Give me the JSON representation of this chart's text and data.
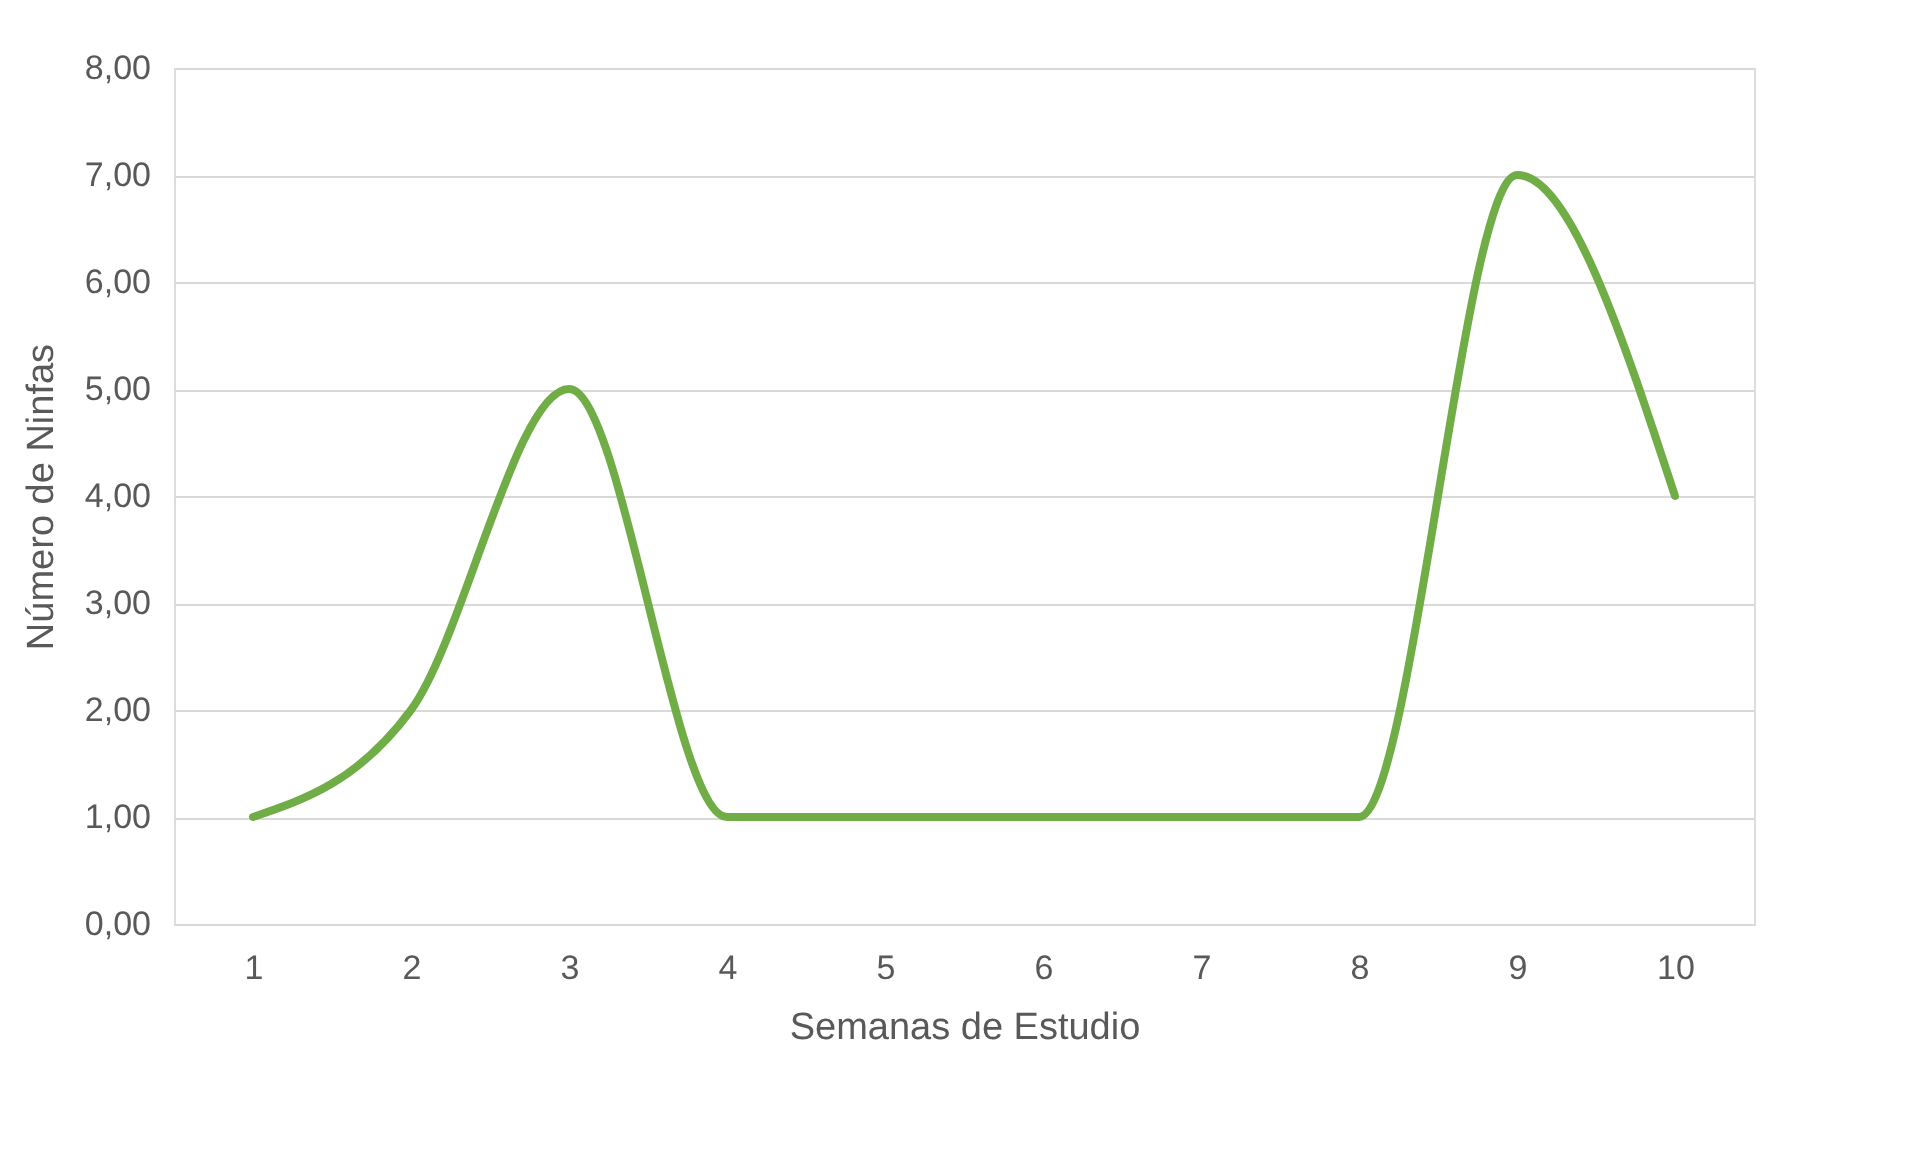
{
  "chart_data": {
    "type": "line",
    "xlabel": "Semanas de Estudio",
    "ylabel": "Número de Ninfas",
    "categories": [
      "1",
      "2",
      "3",
      "4",
      "5",
      "6",
      "7",
      "8",
      "9",
      "10"
    ],
    "series": [
      {
        "color": "#70ad47",
        "values": [
          1,
          2,
          5,
          1,
          1,
          1,
          1,
          1,
          7,
          4
        ]
      }
    ],
    "ylim": [
      0,
      8
    ],
    "yticks": [
      {
        "value": 0,
        "label": "0,00"
      },
      {
        "value": 1,
        "label": "1,00"
      },
      {
        "value": 2,
        "label": "2,00"
      },
      {
        "value": 3,
        "label": "3,00"
      },
      {
        "value": 4,
        "label": "4,00"
      },
      {
        "value": 5,
        "label": "5,00"
      },
      {
        "value": 6,
        "label": "6,00"
      },
      {
        "value": 7,
        "label": "7,00"
      },
      {
        "value": 8,
        "label": "8,00"
      }
    ],
    "grid": "y",
    "marker": "none",
    "line_style": "solid"
  }
}
